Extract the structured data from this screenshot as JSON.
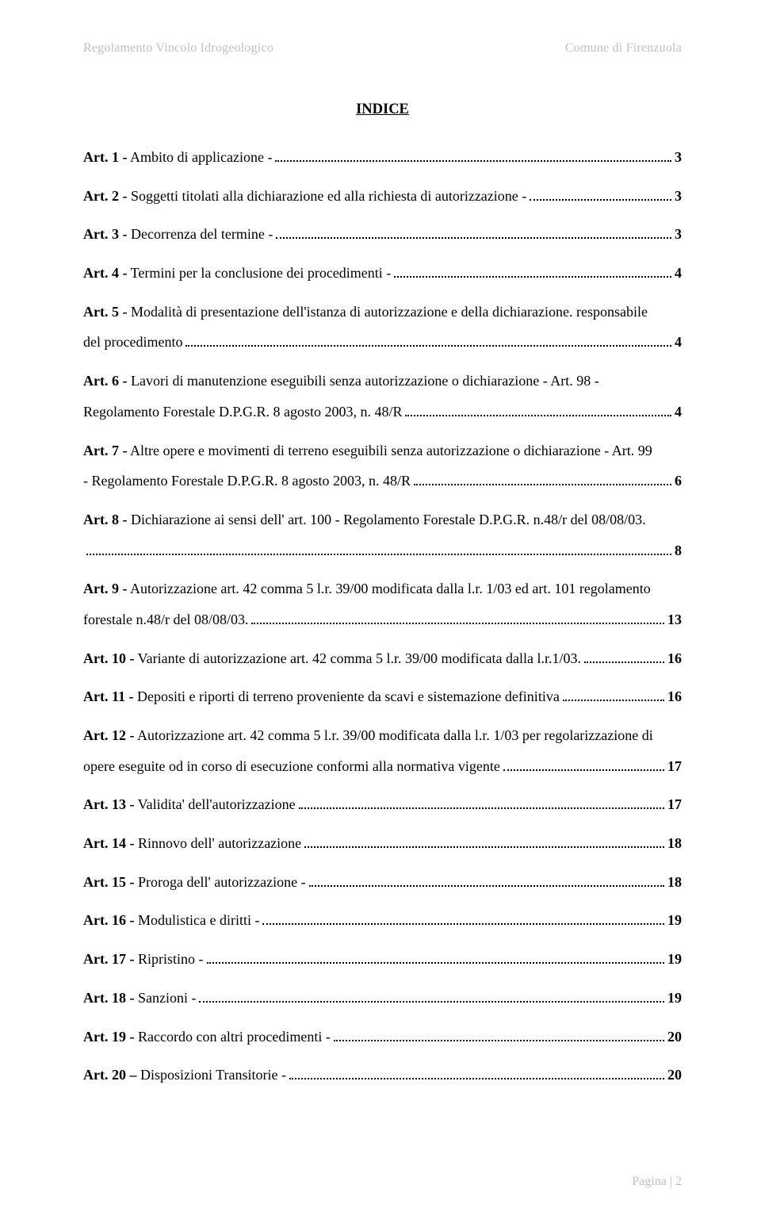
{
  "header": {
    "left": "Regolamento Vincolo Idrogeologico",
    "right": "Comune di Firenzuola"
  },
  "title": "INDICE",
  "entries": [
    {
      "bold": "Art. 1 -",
      "rest": " Ambito di applicazione -",
      "page": "3"
    },
    {
      "bold": "Art. 2 -",
      "rest": " Soggetti titolati alla dichiarazione ed alla richiesta di autorizzazione -",
      "page": "3"
    },
    {
      "bold": "Art. 3 -",
      "rest": " Decorrenza del termine -",
      "page": "3"
    },
    {
      "bold": "Art. 4 -",
      "rest": " Termini per la conclusione dei procedimenti -",
      "page": "4"
    },
    {
      "bold": "Art. 5 -",
      "line1": " Modalità di presentazione dell'istanza di autorizzazione e della dichiarazione. responsabile",
      "line2": "del procedimento",
      "page": "4",
      "multi": true
    },
    {
      "bold": "Art. 6 -",
      "line1": " Lavori di manutenzione eseguibili senza autorizzazione o dichiarazione - Art. 98 -",
      "line2": "Regolamento Forestale D.P.G.R. 8 agosto 2003, n. 48/R",
      "page": "4",
      "multi": true
    },
    {
      "bold": "Art. 7 -",
      "line1": " Altre opere e movimenti di terreno eseguibili senza autorizzazione o dichiarazione - Art. 99",
      "line2": "- Regolamento Forestale D.P.G.R. 8 agosto 2003, n. 48/R",
      "page": "6",
      "multi": true
    },
    {
      "bold": "Art. 8 -",
      "line1": " Dichiarazione ai sensi dell' art. 100 - Regolamento Forestale D.P.G.R. n.48/r del 08/08/03.",
      "line2": "",
      "page": "8",
      "multi": true
    },
    {
      "bold": "Art. 9 -",
      "line1": " Autorizzazione art. 42 comma 5 l.r. 39/00 modificata dalla l.r. 1/03 ed art. 101 regolamento",
      "line2": "forestale n.48/r del 08/08/03. ",
      "page": "13",
      "multi": true
    },
    {
      "bold": "Art. 10 -",
      "rest": " Variante di autorizzazione art. 42 comma 5 l.r. 39/00 modificata dalla l.r.1/03. ",
      "page": "16"
    },
    {
      "bold": "Art. 11 -",
      "rest": " Depositi e riporti di terreno proveniente da scavi e sistemazione definitiva",
      "page": "16"
    },
    {
      "bold": "Art. 12 -",
      "line1": " Autorizzazione art. 42 comma 5 l.r. 39/00 modificata dalla l.r. 1/03 per regolarizzazione di",
      "line2": "opere eseguite od in corso di esecuzione conformi alla normativa vigente",
      "page": "17",
      "multi": true
    },
    {
      "bold": "Art. 13 -",
      "rest": " Validita' dell'autorizzazione",
      "page": "17"
    },
    {
      "bold": "Art. 14 -",
      "rest": " Rinnovo dell' autorizzazione",
      "page": "18"
    },
    {
      "bold": "Art. 15 -",
      "rest": " Proroga dell' autorizzazione -",
      "page": "18"
    },
    {
      "bold": "Art. 16 -",
      "rest": " Modulistica e diritti -",
      "page": "19"
    },
    {
      "bold": "Art. 17 -",
      "rest": " Ripristino -",
      "page": "19"
    },
    {
      "bold": "Art. 18 -",
      "rest": " Sanzioni -",
      "page": "19"
    },
    {
      "bold": "Art. 19 -",
      "rest": " Raccordo con altri procedimenti -",
      "page": "20"
    },
    {
      "bold": "Art. 20 –",
      "rest": " Disposizioni Transitorie -",
      "page": "20"
    }
  ],
  "footer": "Pagina | 2"
}
